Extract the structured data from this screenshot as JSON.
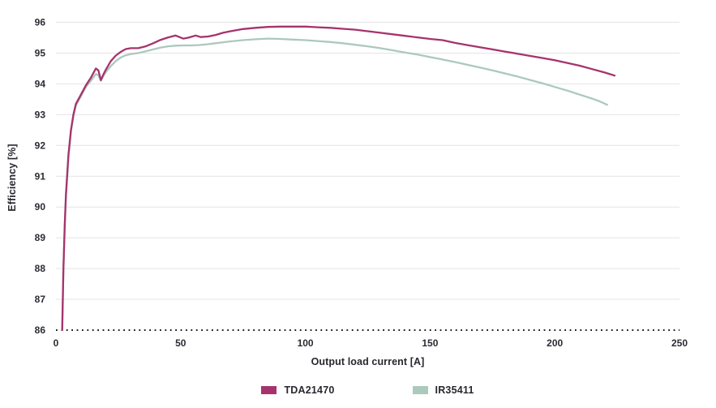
{
  "chart_data": {
    "type": "line",
    "title": "",
    "xlabel": "Output load current [A]",
    "ylabel": "Efficiency [%]",
    "xlim": [
      0,
      250
    ],
    "ylim": [
      86,
      96
    ],
    "xticks": [
      0,
      50,
      100,
      150,
      200,
      250
    ],
    "yticks": [
      86,
      87,
      88,
      89,
      90,
      91,
      92,
      93,
      94,
      95,
      96
    ],
    "grid": "horizontal-only",
    "baseline_style": "dotted",
    "legend_position": "bottom-center",
    "colors": {
      "tda21470": "#a6336d",
      "ir35411": "#abc9bd",
      "gridline": "#e4e4e4",
      "baseline": "#1c1c1c",
      "text": "#27272f",
      "background": "#ffffff"
    },
    "series": [
      {
        "name": "TDA21470",
        "color": "#a6336d",
        "points": [
          [
            2.5,
            86.0
          ],
          [
            3,
            88.0
          ],
          [
            3.5,
            89.4
          ],
          [
            4,
            90.4
          ],
          [
            5,
            91.7
          ],
          [
            6,
            92.5
          ],
          [
            7,
            93.0
          ],
          [
            8,
            93.35
          ],
          [
            9,
            93.5
          ],
          [
            10,
            93.65
          ],
          [
            12,
            93.95
          ],
          [
            14,
            94.2
          ],
          [
            16,
            94.5
          ],
          [
            17,
            94.44
          ],
          [
            18,
            94.12
          ],
          [
            19,
            94.3
          ],
          [
            20,
            94.46
          ],
          [
            22,
            94.74
          ],
          [
            24,
            94.92
          ],
          [
            26,
            95.04
          ],
          [
            28,
            95.13
          ],
          [
            30,
            95.16
          ],
          [
            33,
            95.16
          ],
          [
            36,
            95.22
          ],
          [
            39,
            95.32
          ],
          [
            42,
            95.43
          ],
          [
            45,
            95.51
          ],
          [
            48,
            95.57
          ],
          [
            51,
            95.47
          ],
          [
            53,
            95.5
          ],
          [
            56,
            95.57
          ],
          [
            58,
            95.52
          ],
          [
            61,
            95.54
          ],
          [
            64,
            95.59
          ],
          [
            67,
            95.66
          ],
          [
            70,
            95.71
          ],
          [
            75,
            95.78
          ],
          [
            80,
            95.82
          ],
          [
            85,
            95.85
          ],
          [
            90,
            95.86
          ],
          [
            95,
            95.86
          ],
          [
            100,
            95.86
          ],
          [
            105,
            95.84
          ],
          [
            110,
            95.82
          ],
          [
            115,
            95.79
          ],
          [
            120,
            95.76
          ],
          [
            125,
            95.71
          ],
          [
            130,
            95.66
          ],
          [
            135,
            95.61
          ],
          [
            140,
            95.56
          ],
          [
            145,
            95.51
          ],
          [
            150,
            95.46
          ],
          [
            155,
            95.42
          ],
          [
            160,
            95.33
          ],
          [
            165,
            95.26
          ],
          [
            170,
            95.19
          ],
          [
            175,
            95.12
          ],
          [
            180,
            95.05
          ],
          [
            185,
            94.98
          ],
          [
            190,
            94.91
          ],
          [
            195,
            94.84
          ],
          [
            200,
            94.77
          ],
          [
            205,
            94.68
          ],
          [
            210,
            94.59
          ],
          [
            215,
            94.48
          ],
          [
            220,
            94.37
          ],
          [
            224,
            94.27
          ]
        ]
      },
      {
        "name": "IR35411",
        "color": "#abc9bd",
        "points": [
          [
            2.5,
            86.0
          ],
          [
            3,
            87.9
          ],
          [
            3.5,
            89.3
          ],
          [
            4,
            90.3
          ],
          [
            5,
            91.6
          ],
          [
            6,
            92.45
          ],
          [
            7,
            92.95
          ],
          [
            8,
            93.3
          ],
          [
            9,
            93.45
          ],
          [
            10,
            93.6
          ],
          [
            12,
            93.9
          ],
          [
            14,
            94.1
          ],
          [
            16,
            94.32
          ],
          [
            17,
            94.28
          ],
          [
            18,
            94.1
          ],
          [
            19,
            94.25
          ],
          [
            20,
            94.38
          ],
          [
            22,
            94.58
          ],
          [
            24,
            94.74
          ],
          [
            26,
            94.86
          ],
          [
            28,
            94.93
          ],
          [
            30,
            94.97
          ],
          [
            33,
            95.0
          ],
          [
            36,
            95.06
          ],
          [
            39,
            95.12
          ],
          [
            42,
            95.18
          ],
          [
            45,
            95.22
          ],
          [
            48,
            95.24
          ],
          [
            51,
            95.25
          ],
          [
            54,
            95.25
          ],
          [
            57,
            95.26
          ],
          [
            60,
            95.28
          ],
          [
            63,
            95.31
          ],
          [
            66,
            95.34
          ],
          [
            70,
            95.38
          ],
          [
            75,
            95.42
          ],
          [
            80,
            95.45
          ],
          [
            85,
            95.47
          ],
          [
            90,
            95.46
          ],
          [
            95,
            95.44
          ],
          [
            100,
            95.42
          ],
          [
            105,
            95.39
          ],
          [
            110,
            95.36
          ],
          [
            115,
            95.32
          ],
          [
            120,
            95.27
          ],
          [
            125,
            95.22
          ],
          [
            130,
            95.16
          ],
          [
            135,
            95.09
          ],
          [
            140,
            95.02
          ],
          [
            145,
            94.95
          ],
          [
            150,
            94.87
          ],
          [
            155,
            94.79
          ],
          [
            160,
            94.71
          ],
          [
            165,
            94.62
          ],
          [
            170,
            94.53
          ],
          [
            175,
            94.44
          ],
          [
            180,
            94.34
          ],
          [
            185,
            94.24
          ],
          [
            190,
            94.13
          ],
          [
            195,
            94.02
          ],
          [
            200,
            93.9
          ],
          [
            205,
            93.78
          ],
          [
            210,
            93.65
          ],
          [
            215,
            93.52
          ],
          [
            218,
            93.43
          ],
          [
            221,
            93.32
          ]
        ]
      }
    ]
  }
}
